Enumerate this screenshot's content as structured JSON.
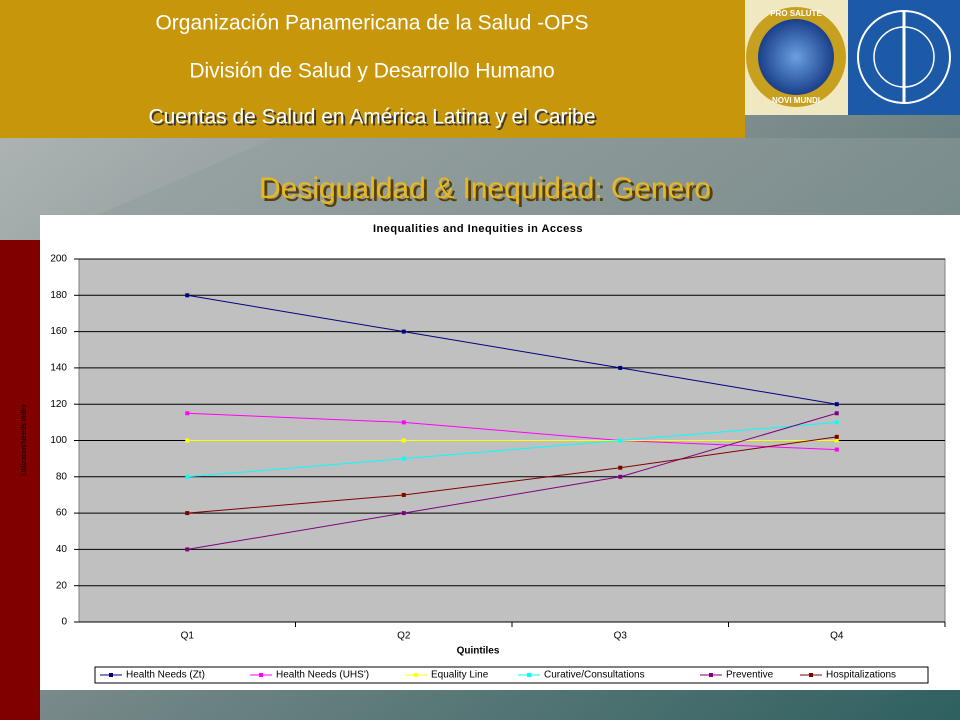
{
  "header": {
    "line1": "Organización Panamericana de la Salud -OPS",
    "line2": "División de Salud y Desarrollo Humano",
    "line3": "Cuentas de Salud en América Latina y el Caribe",
    "logo_top": "PRO SALUTE",
    "logo_bottom": "NOVI MUNDI",
    "slide_title": "Desigualdad & Inequidad: Genero"
  },
  "chart_data": {
    "type": "line",
    "title": "Inequalities and Inequities in Access",
    "x_label": "Quintiles",
    "y_label": "Utilization/Needs Index",
    "categories": [
      "Q1",
      "Q2",
      "Q3",
      "Q4"
    ],
    "ylim": [
      0,
      200
    ],
    "yticks": [
      0,
      20,
      40,
      60,
      80,
      100,
      120,
      140,
      160,
      180,
      200
    ],
    "grid": true,
    "legend": "bottom",
    "series": [
      {
        "name": "Health Needs (Zt)",
        "color": "#000080",
        "values": [
          180,
          160,
          140,
          120
        ]
      },
      {
        "name": "Health Needs (UHS')",
        "color": "#ff00ff",
        "values": [
          115,
          110,
          100,
          95
        ]
      },
      {
        "name": "Equality Line",
        "color": "#ffff00",
        "values": [
          100,
          100,
          100,
          100
        ]
      },
      {
        "name": "Curative/Consultations",
        "color": "#00ffff",
        "values": [
          80,
          90,
          100,
          110
        ]
      },
      {
        "name": "Preventive",
        "color": "#800080",
        "values": [
          40,
          60,
          80,
          115
        ]
      },
      {
        "name": "Hospitalizations",
        "color": "#800000",
        "values": [
          60,
          70,
          85,
          102
        ]
      }
    ]
  }
}
